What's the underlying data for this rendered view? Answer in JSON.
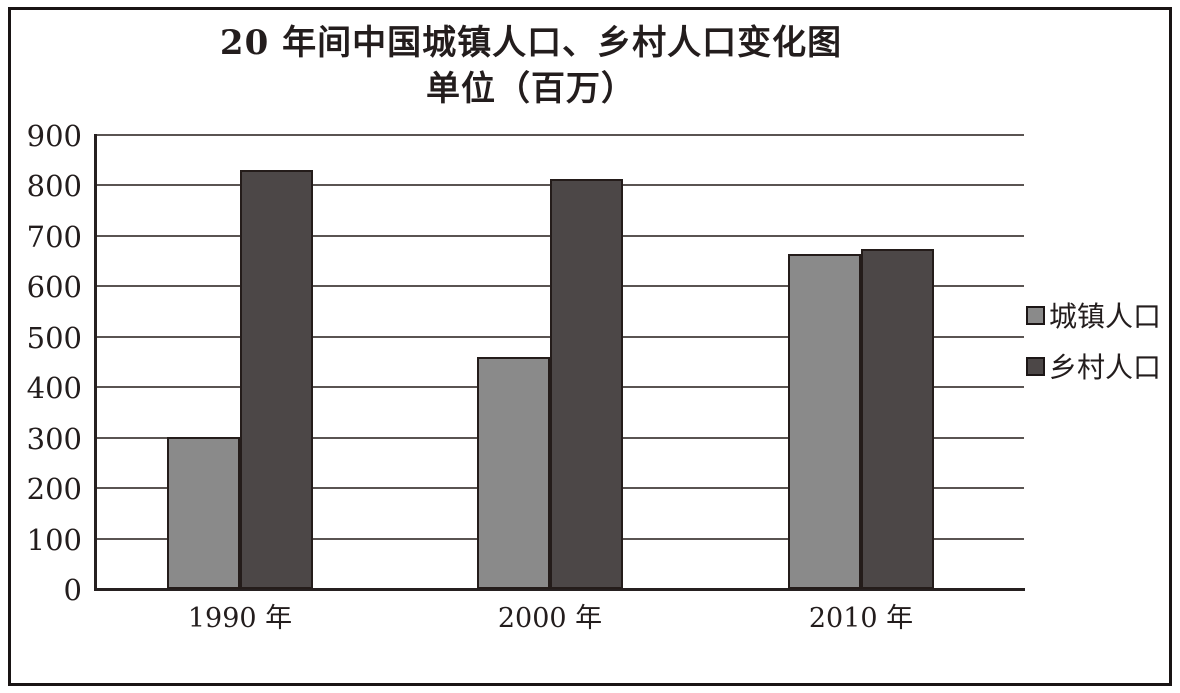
{
  "title": "20 年间中国城镇人口、乡村人口变化图",
  "subtitle": "单位（百万）",
  "chart_data": {
    "type": "bar",
    "title": "20 年间中国城镇人口、乡村人口变化图",
    "subtitle": "单位（百万）",
    "categories": [
      "1990 年",
      "2000 年",
      "2010 年"
    ],
    "series": [
      {
        "name": "城镇人口",
        "color": "#8a8a8a",
        "values": [
          302,
          459,
          665
        ]
      },
      {
        "name": "乡村人口",
        "color": "#4c4747",
        "values": [
          830,
          813,
          674
        ]
      }
    ],
    "ylim": [
      0,
      900
    ],
    "ytick_step": 100,
    "yticks": [
      0,
      100,
      200,
      300,
      400,
      500,
      600,
      700,
      800,
      900
    ],
    "grid": true,
    "legend_position": "right",
    "accent_colors": {
      "urban_fill": "#8a8a8a",
      "rural_fill": "#4c4747",
      "bar_border": "#241c1a",
      "axis": "#262020",
      "gridline": "#5a5452",
      "frame_border": "#191414"
    }
  }
}
